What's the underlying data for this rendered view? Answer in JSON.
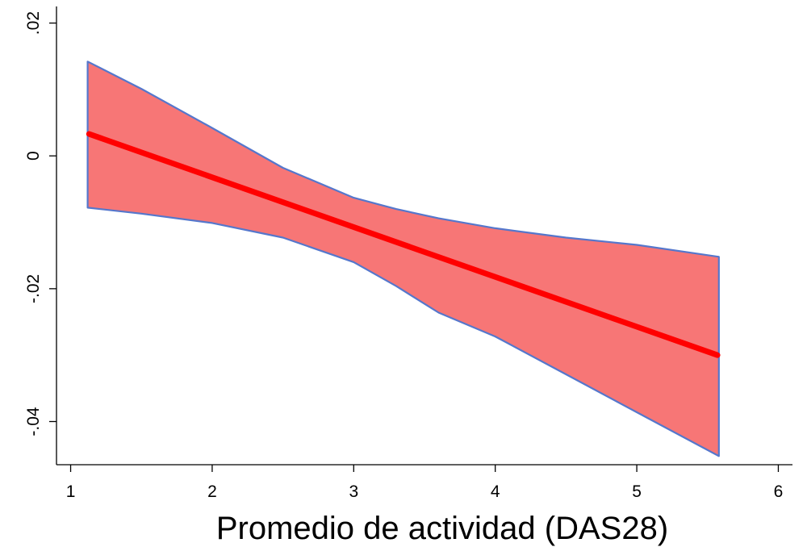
{
  "chart_data": {
    "type": "line",
    "title": "",
    "xlabel": "Promedio de actividad (DAS28)",
    "ylabel": "",
    "xlim": [
      0.9,
      6.1
    ],
    "ylim": [
      -0.0465,
      0.0225
    ],
    "x_ticks": [
      1,
      2,
      3,
      4,
      5,
      6
    ],
    "y_ticks": [
      0.02,
      0,
      -0.02,
      -0.04
    ],
    "x_tick_labels": [
      "1",
      "2",
      "3",
      "4",
      "5",
      "6"
    ],
    "y_tick_labels": [
      ".02",
      "0",
      "-.02",
      "-.04"
    ],
    "grid": false,
    "legend": "none",
    "series": [
      {
        "kind": "line",
        "x": [
          1.13,
          1.6,
          2.0,
          2.5,
          3.0,
          3.5,
          4.0,
          4.5,
          5.0,
          5.57
        ],
        "y": [
          0.0033,
          -0.0014,
          -0.0052,
          -0.0099,
          -0.0147,
          -0.0195,
          -0.0241,
          -0.0288,
          -0.0334,
          -0.03
        ],
        "color": "#ff0000"
      },
      {
        "kind": "band",
        "x": [
          1.12,
          1.5,
          2.0,
          2.5,
          3.0,
          3.3,
          3.6,
          4.0,
          4.5,
          5.0,
          5.58
        ],
        "upper": [
          0.0142,
          0.0101,
          0.0042,
          -0.0018,
          -0.0063,
          -0.008,
          -0.0094,
          -0.0109,
          -0.0123,
          -0.0134,
          -0.0152
        ],
        "lower": [
          -0.0078,
          -0.0087,
          -0.0101,
          -0.0123,
          -0.016,
          -0.0196,
          -0.0236,
          -0.0272,
          -0.0329,
          -0.0386,
          -0.0452
        ],
        "fill": "#f77676",
        "stroke": "#5577cc"
      }
    ]
  }
}
